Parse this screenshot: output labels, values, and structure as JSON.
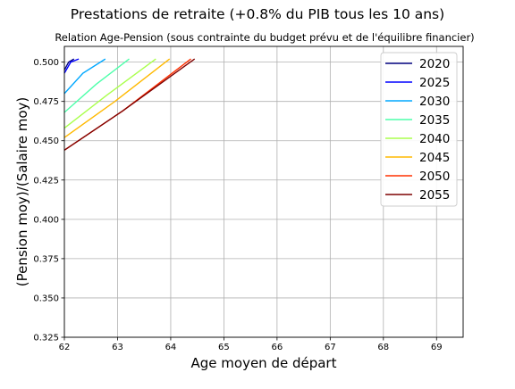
{
  "chart_data": {
    "type": "line",
    "title": "Prestations de retraite (+0.8% du PIB tous les 10 ans)",
    "subtitle": "Relation Age-Pension (sous contrainte du budget prévu et de l'équilibre financier)",
    "xlabel": "Age moyen de départ",
    "ylabel": "(Pension moy)/(Salaire moy)",
    "xlim": [
      62,
      69.5
    ],
    "ylim": [
      0.325,
      0.51
    ],
    "xticks": [
      62,
      63,
      64,
      65,
      66,
      67,
      68,
      69
    ],
    "yticks": [
      0.325,
      0.35,
      0.375,
      0.4,
      0.425,
      0.45,
      0.475,
      0.5
    ],
    "xtick_labels": [
      "62",
      "63",
      "64",
      "65",
      "66",
      "67",
      "68",
      "69"
    ],
    "ytick_labels": [
      "0.325",
      "0.350",
      "0.375",
      "0.400",
      "0.425",
      "0.450",
      "0.475",
      "0.500"
    ],
    "grid": true,
    "legend_position": "top-right",
    "series": [
      {
        "name": "2020",
        "color": "#00007f",
        "x": [
          62.0,
          62.08,
          62.18
        ],
        "y": [
          0.495,
          0.5,
          0.502
        ]
      },
      {
        "name": "2025",
        "color": "#0000ff",
        "x": [
          62.0,
          62.12,
          62.27
        ],
        "y": [
          0.493,
          0.5,
          0.502
        ]
      },
      {
        "name": "2030",
        "color": "#00a8ff",
        "x": [
          62.0,
          62.35,
          62.77
        ],
        "y": [
          0.48,
          0.493,
          0.502
        ]
      },
      {
        "name": "2035",
        "color": "#4dffaa",
        "x": [
          62.0,
          62.6,
          63.22
        ],
        "y": [
          0.468,
          0.486,
          0.502
        ]
      },
      {
        "name": "2040",
        "color": "#aaff4d",
        "x": [
          62.0,
          62.8,
          63.72
        ],
        "y": [
          0.458,
          0.479,
          0.502
        ]
      },
      {
        "name": "2045",
        "color": "#ffb900",
        "x": [
          62.0,
          62.95,
          63.98
        ],
        "y": [
          0.452,
          0.475,
          0.502
        ]
      },
      {
        "name": "2050",
        "color": "#ff3000",
        "x": [
          62.0,
          63.1,
          64.38
        ],
        "y": [
          0.444,
          0.469,
          0.502
        ]
      },
      {
        "name": "2055",
        "color": "#7f0000",
        "x": [
          62.0,
          63.1,
          64.45
        ],
        "y": [
          0.444,
          0.469,
          0.502
        ]
      }
    ]
  }
}
